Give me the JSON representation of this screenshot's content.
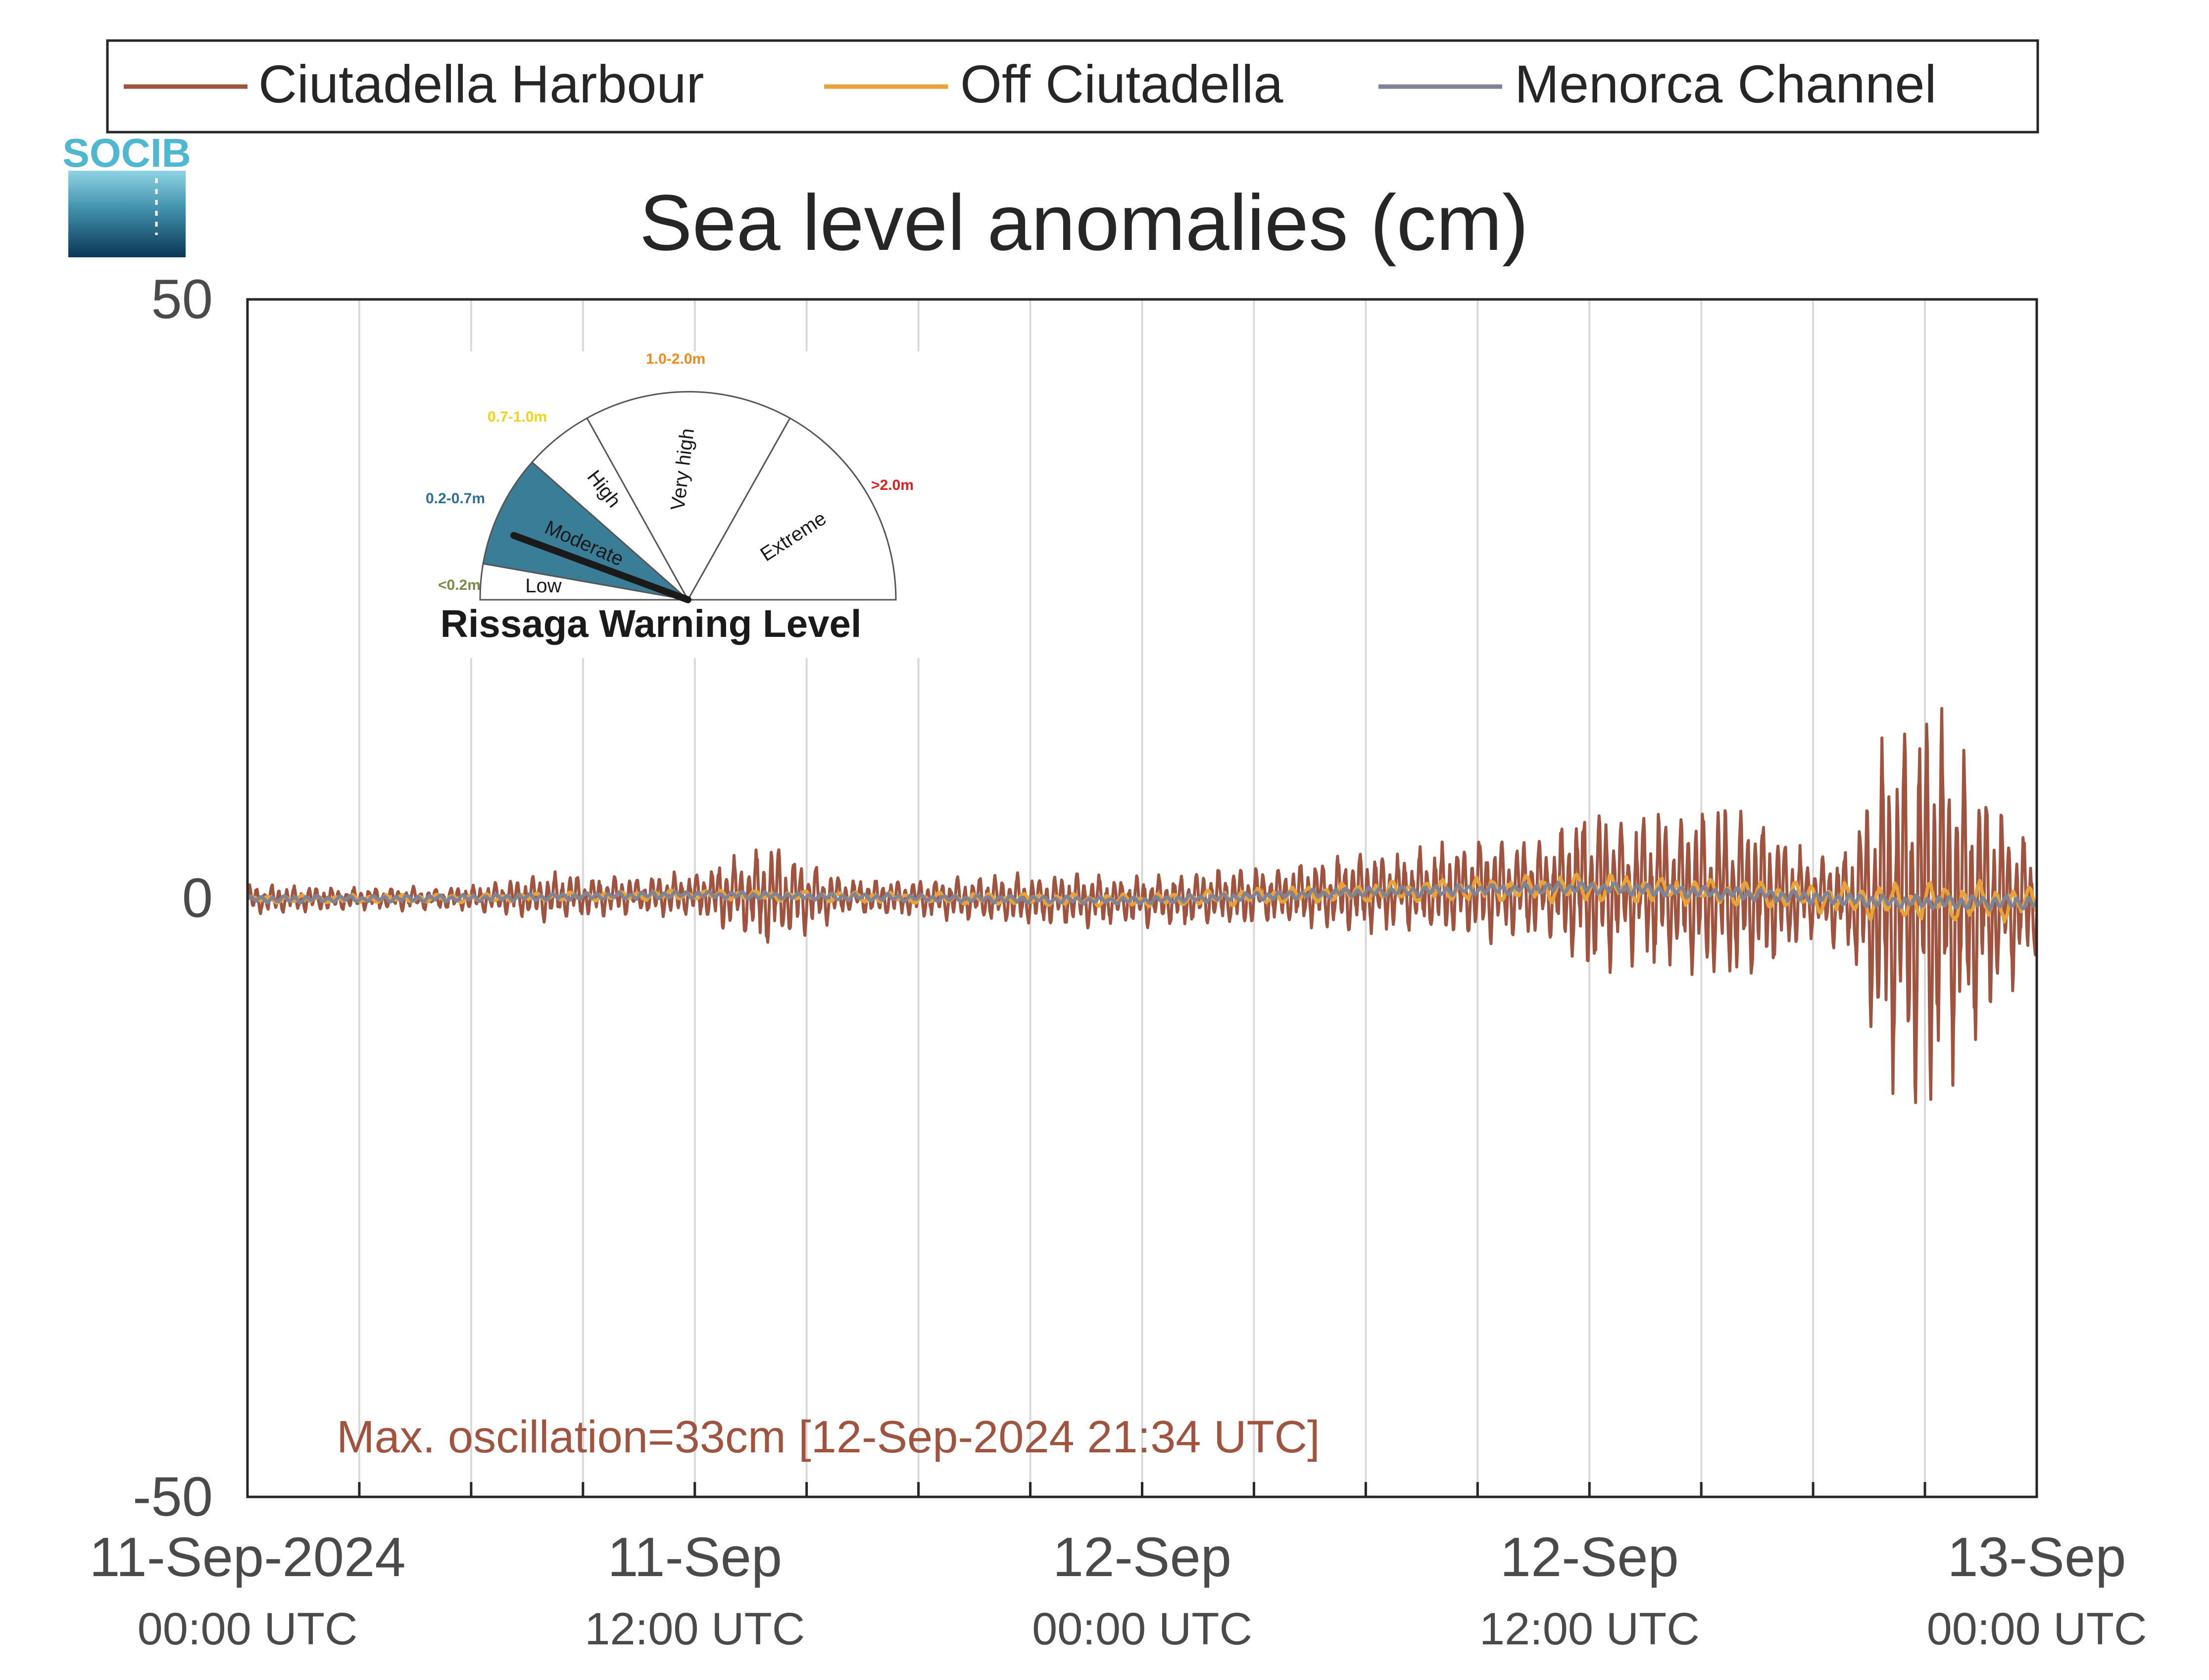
{
  "logo": {
    "text": "SOCIB"
  },
  "legend": {
    "items": [
      {
        "label": "Ciutadella Harbour",
        "color": "#a0533f"
      },
      {
        "label": "Off Ciutadella",
        "color": "#e8a23a"
      },
      {
        "label": "Menorca Channel",
        "color": "#7f8396"
      }
    ]
  },
  "gauge": {
    "title": "Rissaga Warning Level",
    "sectors": [
      {
        "name": "Low",
        "range": "<0.2m",
        "range_color": "#7a8a4a"
      },
      {
        "name": "Moderate",
        "range": "0.2-0.7m",
        "range_color": "#2f6f8f",
        "active": true
      },
      {
        "name": "High",
        "range": "0.7-1.0m",
        "range_color": "#f2d21a"
      },
      {
        "name": "Very high",
        "range": "1.0-2.0m",
        "range_color": "#f08a1c"
      },
      {
        "name": "Extreme",
        "range": ">2.0m",
        "range_color": "#e0201c"
      }
    ],
    "active_fill": "#3a7d96"
  },
  "annotation": {
    "text": "Max. oscillation=33cm [12-Sep-2024 21:34 UTC]",
    "color": "#a0533f"
  },
  "chart_data": {
    "type": "line",
    "title": "Sea level anomalies (cm)",
    "ylim": [
      -50,
      50
    ],
    "yticks": [
      "50",
      "0",
      "-50"
    ],
    "xlim_hours": [
      0,
      48
    ],
    "xticks": [
      {
        "hour": 0,
        "line1": "11-Sep-2024",
        "line2": "00:00 UTC"
      },
      {
        "hour": 12,
        "line1": "11-Sep",
        "line2": "12:00 UTC"
      },
      {
        "hour": 24,
        "line1": "12-Sep",
        "line2": "00:00 UTC"
      },
      {
        "hour": 36,
        "line1": "12-Sep",
        "line2": "12:00 UTC"
      },
      {
        "hour": 48,
        "line1": "13-Sep",
        "line2": "00:00 UTC"
      }
    ],
    "grid": "vertical every 3 h",
    "series": [
      {
        "name": "Ciutadella Harbour",
        "color": "#a0533f",
        "envelope_hours": [
          0,
          3,
          6,
          8,
          10,
          12,
          14,
          16,
          18,
          20,
          22,
          24,
          26,
          28,
          30,
          31,
          33,
          34,
          35,
          36,
          37,
          38,
          40,
          41,
          42,
          43,
          44,
          45,
          46,
          47,
          48
        ],
        "envelope_amplitude_cm": [
          1.2,
          0.9,
          1.0,
          2.0,
          1.5,
          1.8,
          4.5,
          1.5,
          1.5,
          2.0,
          2.2,
          2.0,
          2.3,
          2.5,
          3.5,
          3.0,
          4.5,
          4.0,
          4.5,
          7.5,
          6.0,
          6.5,
          7.5,
          6.0,
          3.0,
          4.5,
          14.0,
          16.5,
          13.0,
          8.0,
          4.5
        ]
      },
      {
        "name": "Off Ciutadella",
        "color": "#e8a23a",
        "envelope_hours": [
          0,
          12,
          24,
          30,
          36,
          40,
          44,
          46,
          48
        ],
        "envelope_amplitude_cm": [
          0.3,
          0.4,
          0.5,
          0.8,
          1.2,
          1.0,
          1.5,
          1.8,
          1.2
        ]
      },
      {
        "name": "Menorca Channel",
        "color": "#7f8396",
        "envelope_hours": [
          0,
          12,
          24,
          36,
          48
        ],
        "envelope_amplitude_cm": [
          0.3,
          0.3,
          0.3,
          0.5,
          0.6
        ]
      }
    ],
    "mean_level_cm": {
      "hours": [
        0,
        6,
        12,
        18,
        24,
        30,
        36,
        40,
        44,
        48
      ],
      "values": [
        -0.1,
        0.0,
        0.3,
        0.0,
        -0.2,
        0.5,
        0.9,
        0.4,
        -0.3,
        -0.4
      ]
    }
  }
}
